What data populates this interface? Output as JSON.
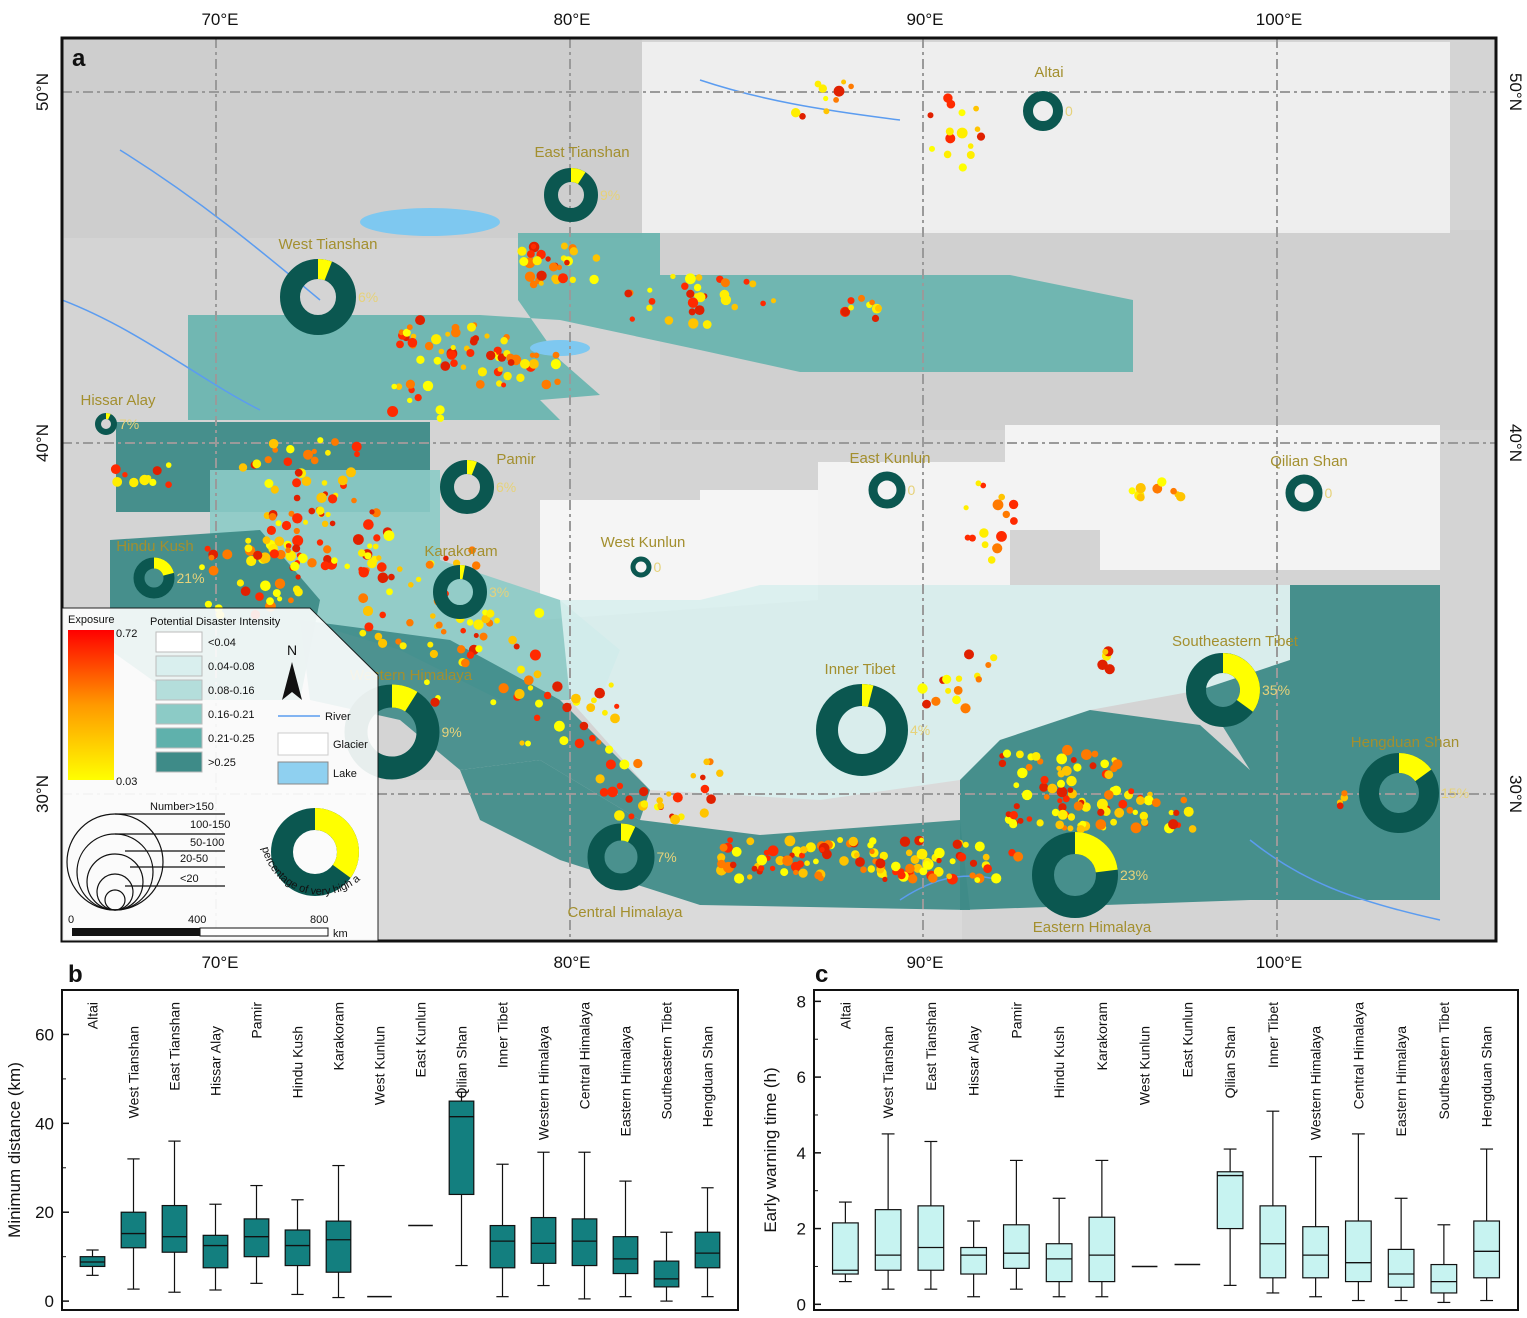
{
  "colors": {
    "donut_main": "#0b5750",
    "donut_risk": "#ffff00",
    "label": "#a38f2e",
    "box_b": "#137f7f",
    "box_c": "#c7f3f1",
    "pdi_classes": [
      "#ffffff",
      "#d9efee",
      "#b4dedb",
      "#8ccbc6",
      "#5fb1ac",
      "#3e8b88"
    ]
  },
  "panel_a": {
    "panel_letter": "a",
    "lon_ticks": [
      "70°E",
      "80°E",
      "90°E",
      "100°E"
    ],
    "lat_ticks": [
      "50°N",
      "40°N",
      "30°N"
    ],
    "regions": [
      {
        "name": "Altai",
        "pct": "0",
        "risk": 0
      },
      {
        "name": "East Tianshan",
        "pct": "9%",
        "risk": 9
      },
      {
        "name": "West Tianshan",
        "pct": "6%",
        "risk": 6
      },
      {
        "name": "Hissar Alay",
        "pct": "7%",
        "risk": 7
      },
      {
        "name": "Pamir",
        "pct": "6%",
        "risk": 6
      },
      {
        "name": "East Kunlun",
        "pct": "0",
        "risk": 0
      },
      {
        "name": "Qilian Shan",
        "pct": "0",
        "risk": 0
      },
      {
        "name": "Hindu Kush",
        "pct": "21%",
        "risk": 21
      },
      {
        "name": "Karakoram",
        "pct": "3%",
        "risk": 3
      },
      {
        "name": "West Kunlun",
        "pct": "0",
        "risk": 0
      },
      {
        "name": "Inner Tibet",
        "pct": "4%",
        "risk": 4
      },
      {
        "name": "Southeastern Tibet",
        "pct": "35%",
        "risk": 35
      },
      {
        "name": "Western Himalaya",
        "pct": "9%",
        "risk": 9
      },
      {
        "name": "Hengduan Shan",
        "pct": "15%",
        "risk": 15
      },
      {
        "name": "Central Himalaya",
        "pct": "7%",
        "risk": 7
      },
      {
        "name": "Eastern Himalaya",
        "pct": "23%",
        "risk": 23
      }
    ],
    "legend": {
      "exposure_title": "Exposure",
      "exposure_max": "0.72",
      "exposure_min": "0.03",
      "pdi_title": "Potential Disaster Intensity",
      "pdi_classes": [
        "<0.04",
        "0.04-0.08",
        "0.08-0.16",
        "0.16-0.21",
        "0.21-0.25",
        ">0.25"
      ],
      "north": "N",
      "river": "River",
      "glacier": "Glacier",
      "lake": "Lake",
      "number_title": "Number>150",
      "number_classes": [
        "100-150",
        "50-100",
        "20-50",
        "<20"
      ],
      "donut_caption": "percentage of very high and high risk glacial lakes",
      "scale_ticks": [
        "0",
        "400",
        "800"
      ],
      "scale_unit": "km"
    }
  },
  "panel_b": {
    "panel_letter": "b",
    "chart_data": {
      "type": "box",
      "ylabel": "Minimum distance (km)",
      "ylim": [
        -2,
        70
      ],
      "yticks": [
        "0",
        "20",
        "40",
        "60"
      ],
      "categories": [
        "Altai",
        "West Tianshan",
        "East Tianshan",
        "Hissar Alay",
        "Pamir",
        "Hindu Kush",
        "Karakoram",
        "West Kunlun",
        "East Kunlun",
        "Qilian Shan",
        "Inner Tibet",
        "Western Himalaya",
        "Central Himalaya",
        "Eastern Himalaya",
        "Southeastern Tibet",
        "Hengduan Shan"
      ],
      "boxes": [
        {
          "min": 5.8,
          "q1": 7.8,
          "median": 8.8,
          "q3": 10,
          "max": 11.5
        },
        {
          "min": 2.7,
          "q1": 12,
          "median": 15.2,
          "q3": 20,
          "max": 32
        },
        {
          "min": 2,
          "q1": 11,
          "median": 14.5,
          "q3": 21.5,
          "max": 36
        },
        {
          "min": 2.5,
          "q1": 7.5,
          "median": 12.5,
          "q3": 14.8,
          "max": 21.8
        },
        {
          "min": 4,
          "q1": 10,
          "median": 14.5,
          "q3": 18.5,
          "max": 26
        },
        {
          "min": 1.5,
          "q1": 8,
          "median": 12.5,
          "q3": 16,
          "max": 22.8
        },
        {
          "min": 0.8,
          "q1": 6.5,
          "median": 13.8,
          "q3": 18,
          "max": 30.5
        },
        {
          "min": 1,
          "q1": 1,
          "median": 1,
          "q3": 1,
          "max": 1
        },
        {
          "min": 17,
          "q1": 17,
          "median": 17,
          "q3": 17,
          "max": 17
        },
        {
          "min": 8,
          "q1": 24,
          "median": 41.5,
          "q3": 45,
          "max": 47
        },
        {
          "min": 1,
          "q1": 7.5,
          "median": 13.5,
          "q3": 17,
          "max": 30.8
        },
        {
          "min": 3.5,
          "q1": 8.5,
          "median": 13,
          "q3": 18.8,
          "max": 33.5
        },
        {
          "min": 0.5,
          "q1": 8,
          "median": 13.5,
          "q3": 18.5,
          "max": 33.5
        },
        {
          "min": 1,
          "q1": 6.2,
          "median": 9.5,
          "q3": 14.5,
          "max": 27
        },
        {
          "min": 0,
          "q1": 3.2,
          "median": 5,
          "q3": 9,
          "max": 15.5
        },
        {
          "min": 1,
          "q1": 7.5,
          "median": 10.8,
          "q3": 15.5,
          "max": 25.5
        }
      ]
    }
  },
  "panel_c": {
    "panel_letter": "c",
    "chart_data": {
      "type": "box",
      "ylabel": "Early warning time (h)",
      "ylim": [
        -0.15,
        8.3
      ],
      "yticks": [
        "0",
        "2",
        "4",
        "6",
        "8"
      ],
      "categories": [
        "Altai",
        "West Tianshan",
        "East Tianshan",
        "Hissar Alay",
        "Pamir",
        "Hindu Kush",
        "Karakoram",
        "West Kunlun",
        "East Kunlun",
        "Qilian Shan",
        "Inner Tibet",
        "Western Himalaya",
        "Central Himalaya",
        "Eastern Himalaya",
        "Southeastern Tibet",
        "Hengduan Shan"
      ],
      "boxes": [
        {
          "min": 0.6,
          "q1": 0.8,
          "median": 0.9,
          "q3": 2.15,
          "max": 2.7
        },
        {
          "min": 0.4,
          "q1": 0.9,
          "median": 1.3,
          "q3": 2.5,
          "max": 4.5
        },
        {
          "min": 0.4,
          "q1": 0.9,
          "median": 1.5,
          "q3": 2.6,
          "max": 4.3
        },
        {
          "min": 0.2,
          "q1": 0.8,
          "median": 1.3,
          "q3": 1.5,
          "max": 2.2
        },
        {
          "min": 0.4,
          "q1": 0.95,
          "median": 1.35,
          "q3": 2.1,
          "max": 3.8
        },
        {
          "min": 0.2,
          "q1": 0.6,
          "median": 1.2,
          "q3": 1.6,
          "max": 2.8
        },
        {
          "min": 0.2,
          "q1": 0.6,
          "median": 1.3,
          "q3": 2.3,
          "max": 3.8
        },
        {
          "min": 1,
          "q1": 1,
          "median": 1,
          "q3": 1,
          "max": 1
        },
        {
          "min": 1.05,
          "q1": 1.05,
          "median": 1.05,
          "q3": 1.05,
          "max": 1.05
        },
        {
          "min": 0.5,
          "q1": 2,
          "median": 3.4,
          "q3": 3.5,
          "max": 4.1
        },
        {
          "min": 0.3,
          "q1": 0.7,
          "median": 1.6,
          "q3": 2.6,
          "max": 5.1
        },
        {
          "min": 0.2,
          "q1": 0.7,
          "median": 1.3,
          "q3": 2.05,
          "max": 3.9
        },
        {
          "min": 0.1,
          "q1": 0.6,
          "median": 1.1,
          "q3": 2.2,
          "max": 4.5
        },
        {
          "min": 0.1,
          "q1": 0.45,
          "median": 0.8,
          "q3": 1.45,
          "max": 2.8
        },
        {
          "min": 0.05,
          "q1": 0.3,
          "median": 0.6,
          "q3": 1.05,
          "max": 2.1
        },
        {
          "min": 0.1,
          "q1": 0.7,
          "median": 1.4,
          "q3": 2.2,
          "max": 4.1
        }
      ]
    }
  }
}
